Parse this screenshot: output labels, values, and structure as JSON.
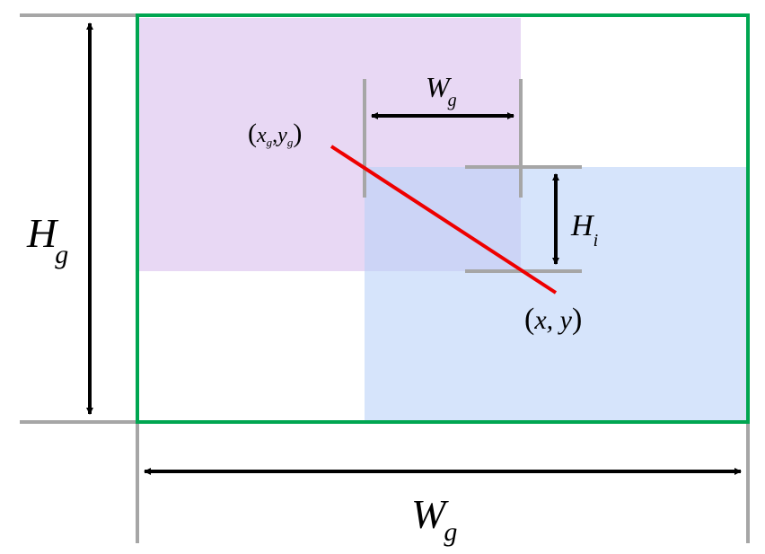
{
  "colors": {
    "outer_box": "#00a651",
    "region_a": "#e8d8f4",
    "region_b": "#d6e4fb",
    "overlap": "#ccd4f6",
    "guide": "#a6a6a6",
    "arrow": "#000000",
    "segment": "#ee0000"
  },
  "labels": {
    "outer_height": {
      "main": "H",
      "sub": "g"
    },
    "outer_width": {
      "main": "W",
      "sub": "g"
    },
    "inner_width": {
      "main": "W",
      "sub": "g"
    },
    "inner_height": {
      "main": "H",
      "sub": "i"
    },
    "point_start": {
      "open": "(",
      "x": "x",
      "xsub": "g",
      "comma": ",",
      "y": "y",
      "ysub": "g",
      "close": ")"
    },
    "point_end": {
      "open": "(",
      "text": "x, y",
      "close": ")"
    }
  }
}
